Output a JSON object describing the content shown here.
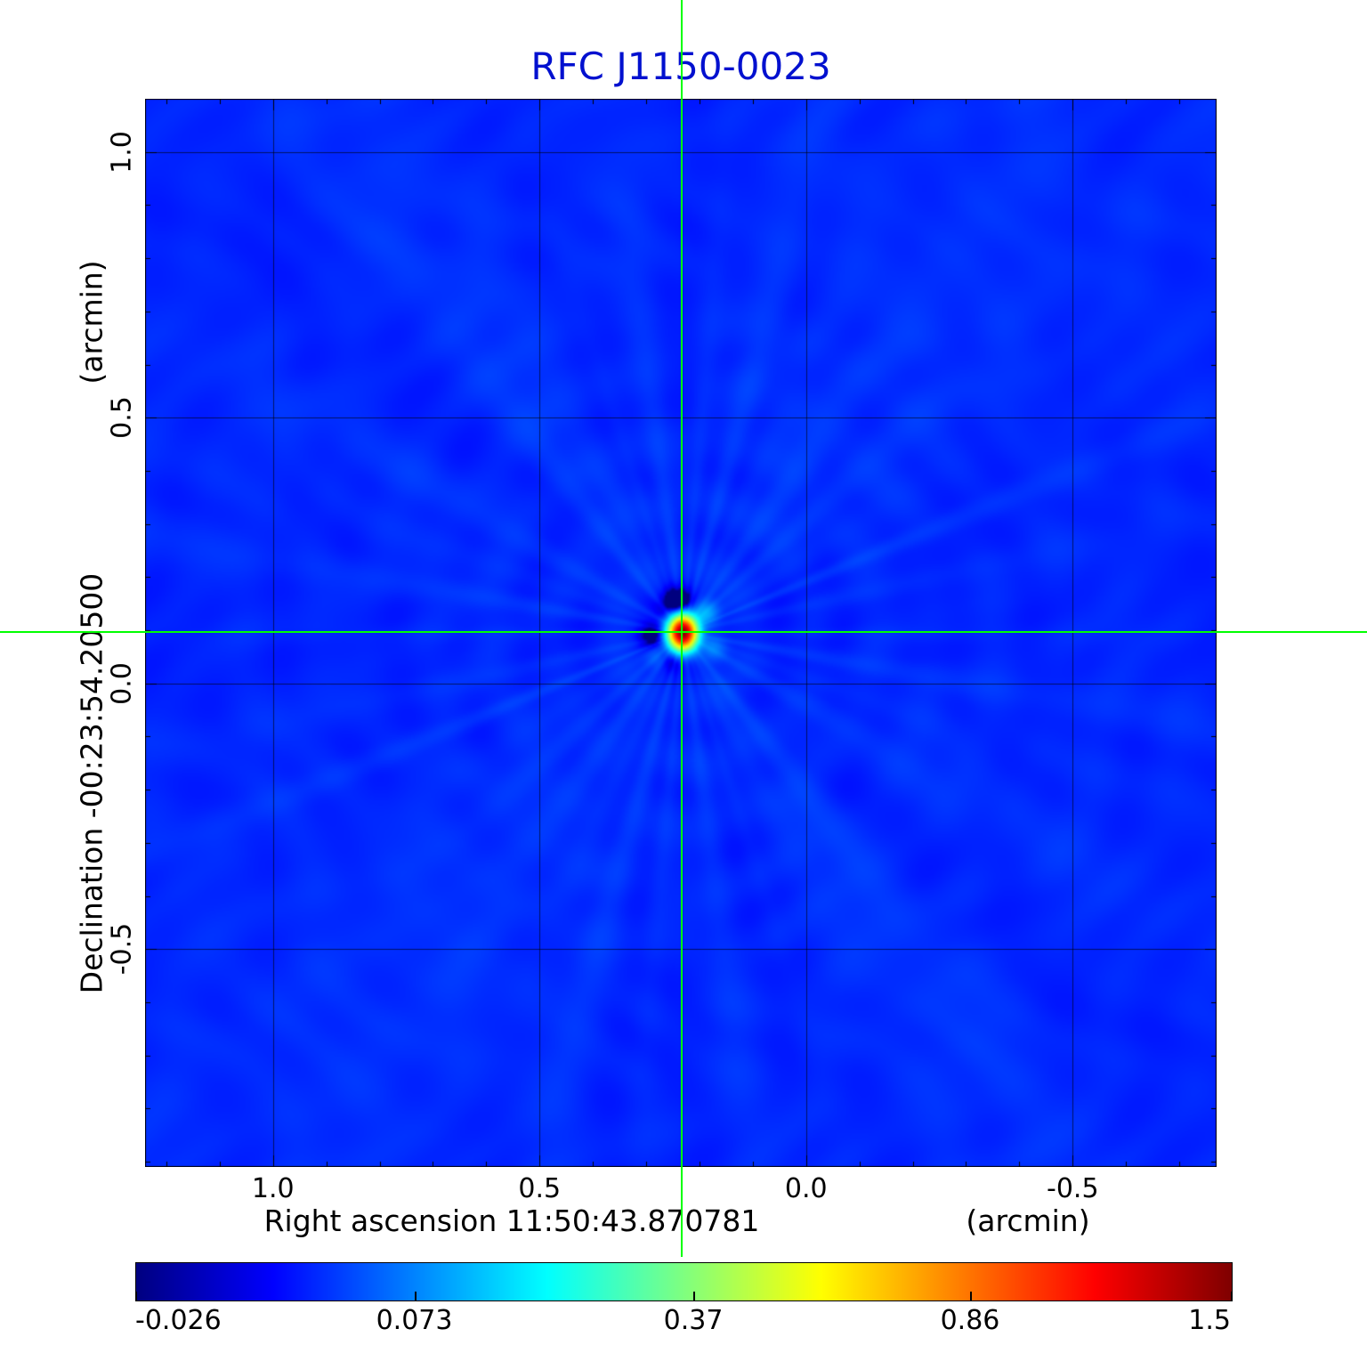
{
  "chart_data": {
    "type": "heatmap",
    "title": "RFC J1150-0023",
    "title_color": "#0010cf",
    "xlabel": "Right ascension  11:50:43.870781",
    "xunit": "(arcmin)",
    "ylabel": "Declination  -00:23:54.20500",
    "yunit": "(arcmin)",
    "xlim": [
      1.24,
      -0.77
    ],
    "ylim": [
      1.1,
      -0.91
    ],
    "x_ticks": [
      {
        "label": "1.0",
        "value": 1.0
      },
      {
        "label": "0.5",
        "value": 0.5
      },
      {
        "label": "0.0",
        "value": 0.0
      },
      {
        "label": "-0.5",
        "value": -0.5
      }
    ],
    "y_ticks": [
      {
        "label": "1.0",
        "value": 1.0
      },
      {
        "label": "0.5",
        "value": 0.5
      },
      {
        "label": "0.0",
        "value": 0.0
      },
      {
        "label": "-0.5",
        "value": -0.5
      }
    ],
    "minor_tick_step": 0.1,
    "grid": true,
    "colormap": "jet",
    "scale": "sqrt",
    "peak": {
      "x": 0.233,
      "y": 0.097,
      "value": 1.5
    },
    "crosshair": {
      "x": 0.233,
      "y": 0.097,
      "color": "#00ff00"
    },
    "colorbar": {
      "tick_labels": [
        "-0.026",
        "0.073",
        "0.37",
        "0.86",
        "1.5"
      ],
      "tick_values": [
        -0.026,
        0.073,
        0.37,
        0.86,
        1.5
      ]
    }
  }
}
